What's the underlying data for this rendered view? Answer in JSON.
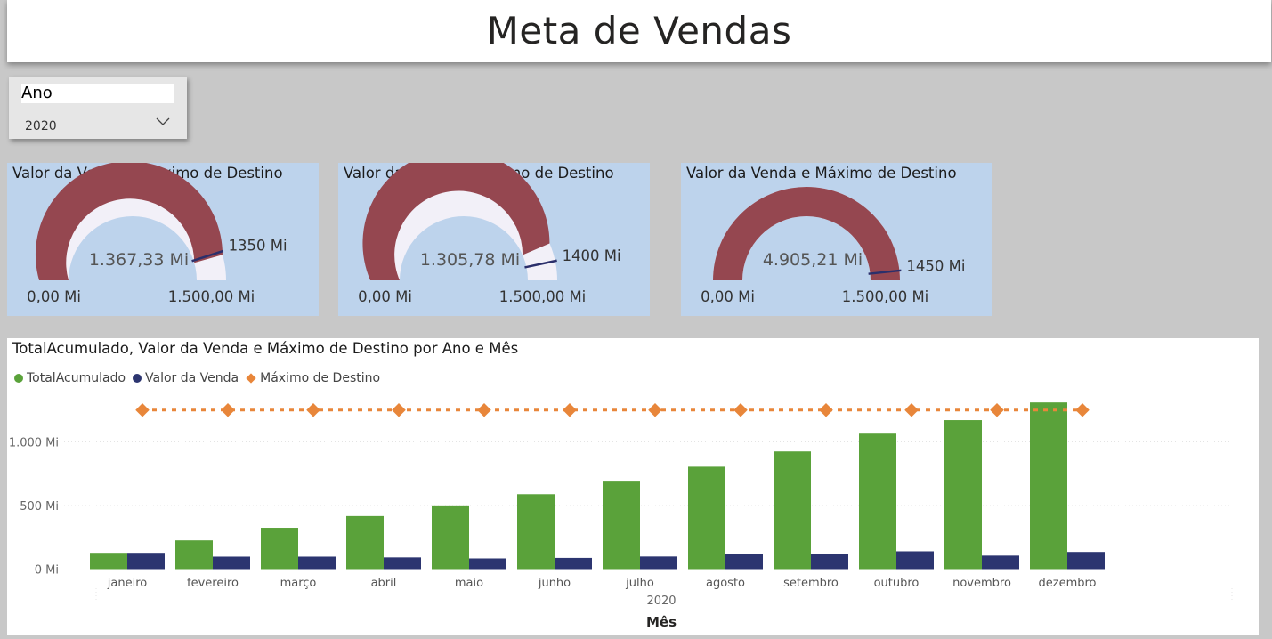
{
  "header": {
    "title": "Meta de Vendas"
  },
  "slicer": {
    "label": "Ano",
    "selected": "2020",
    "icon": "chevron-down-icon"
  },
  "gauges": [
    {
      "title": "Valor da Venda e Máximo de Destino",
      "value": 1367.33,
      "value_label": "1.367,33 Mi",
      "target": 1350,
      "target_label": "1350 Mi",
      "min": 0,
      "min_label": "0,00 Mi",
      "max": 1500,
      "max_label": "1.500,00 Mi"
    },
    {
      "title": "Valor da Venda e Máximo de Destino",
      "value": 1305.78,
      "value_label": "1.305,78 Mi",
      "target": 1400,
      "target_label": "1400 Mi",
      "min": 0,
      "min_label": "0,00 Mi",
      "max": 1500,
      "max_label": "1.500,00 Mi"
    },
    {
      "title": "Valor da Venda e Máximo de Destino",
      "value": 4905.21,
      "value_label": "4.905,21 Mi",
      "target": 1450,
      "target_label": "1450 Mi",
      "min": 0,
      "min_label": "0,00 Mi",
      "max": 1500,
      "max_label": "1.500,00 Mi"
    }
  ],
  "colors": {
    "gauge_fill": "#954750",
    "gauge_track": "#f2f0f8",
    "gauge_target": "#2b2f6b",
    "total": "#5aa23a",
    "venda": "#2c3570",
    "maximo": "#e8863a",
    "card_bg": "#bdd3ec"
  },
  "chart_data": {
    "type": "bar",
    "title": "TotalAcumulado, Valor da Venda e Máximo de Destino por Ano e Mês",
    "xlabel": "Mês",
    "year_label": "2020",
    "ylim": [
      0,
      1400
    ],
    "yticks": [
      0,
      500,
      1000
    ],
    "ytick_labels": [
      "0 Mi",
      "500 Mi",
      "1.000 Mi"
    ],
    "legend_position": "top-left",
    "categories": [
      "janeiro",
      "fevereiro",
      "março",
      "abril",
      "maio",
      "junho",
      "julho",
      "agosto",
      "setembro",
      "outubro",
      "novembro",
      "dezembro"
    ],
    "series": [
      {
        "name": "TotalAcumulado",
        "type": "bar",
        "values": [
          128,
          226,
          325,
          417,
          501,
          589,
          688,
          805,
          925,
          1065,
          1171,
          1310
        ]
      },
      {
        "name": "Valor da Venda",
        "type": "bar",
        "values": [
          128,
          98,
          98,
          92,
          84,
          88,
          99,
          117,
          120,
          140,
          106,
          135
        ]
      },
      {
        "name": "Máximo de Destino",
        "type": "line",
        "values": [
          1250,
          1250,
          1250,
          1250,
          1250,
          1250,
          1250,
          1250,
          1250,
          1250,
          1250,
          1250
        ]
      }
    ]
  }
}
